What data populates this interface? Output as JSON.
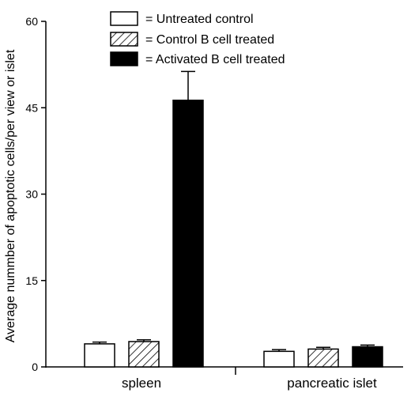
{
  "chart_data": {
    "type": "bar",
    "title": "",
    "xlabel": "",
    "ylabel": "Average nummber of apoptotic cells/per view or islet",
    "ylim": [
      0,
      60
    ],
    "yticks": [
      "0",
      "15",
      "30",
      "45",
      "60"
    ],
    "categories": [
      "spleen",
      "pancreatic islet"
    ],
    "series": [
      {
        "name": "= Untreated control",
        "values": [
          4.0,
          2.7
        ],
        "errors": [
          0.3,
          0.3
        ],
        "fill": "white"
      },
      {
        "name": "= Control B cell treated",
        "values": [
          4.4,
          3.1
        ],
        "errors": [
          0.3,
          0.3
        ],
        "fill": "hatched"
      },
      {
        "name": "= Activated B cell treated",
        "values": [
          46.3,
          3.5
        ],
        "errors": [
          5.0,
          0.3
        ],
        "fill": "black"
      }
    ],
    "legend_position": "top-center",
    "grid": false
  }
}
